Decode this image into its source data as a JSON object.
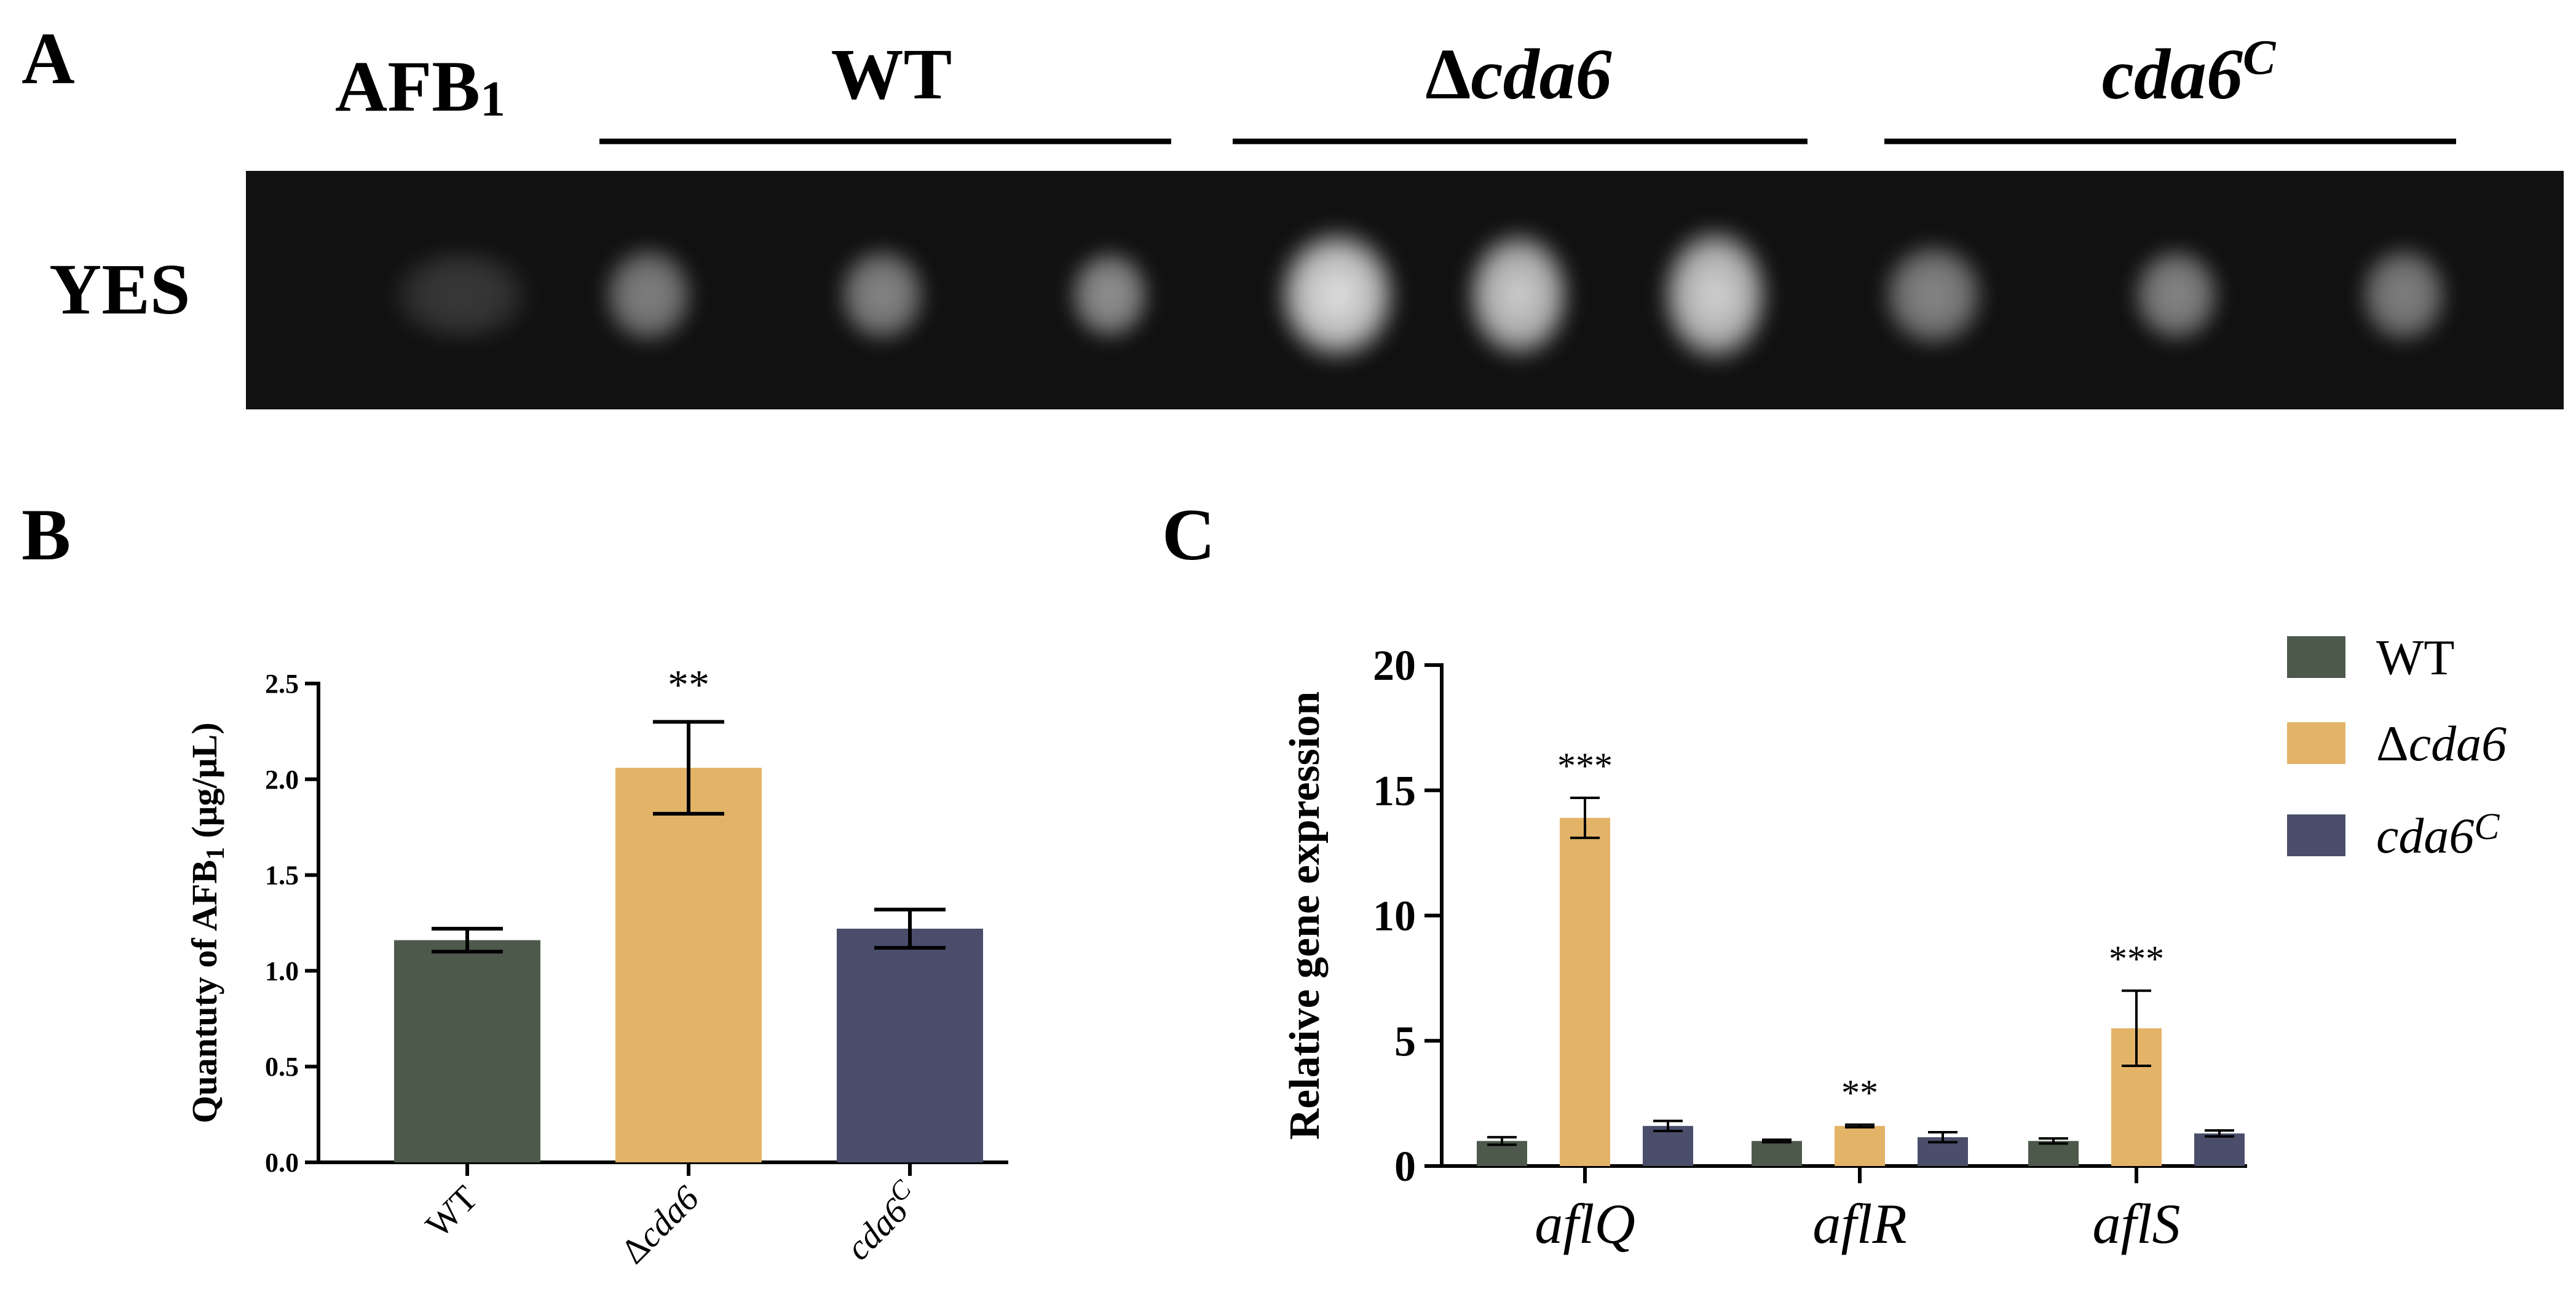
{
  "panel_a": {
    "letter": "A",
    "row_label": "YES",
    "lane_header": "AFB",
    "lane_header_sub": "1",
    "groups": [
      {
        "label": "WT",
        "italic": false,
        "sup": ""
      },
      {
        "label": "Δ",
        "label_italic": "cda6",
        "italic": true,
        "sup": ""
      },
      {
        "label": "",
        "label_italic": "cda6",
        "italic": true,
        "sup": "C"
      }
    ],
    "spot_intensities": [
      0.17,
      0.48,
      0.5,
      0.55,
      0.88,
      0.8,
      0.82,
      0.5,
      0.5,
      0.48
    ]
  },
  "panel_b": {
    "letter": "B"
  },
  "panel_c": {
    "letter": "C"
  },
  "colors": {
    "wt": "#4d5a4b",
    "delta": "#e3b468",
    "comp": "#4a4e6b",
    "gel_bg": "#111111"
  },
  "chart_data": [
    {
      "type": "bar",
      "ylabel": "Quantuty of AFB",
      "ylabel_sub": "1",
      "ylabel_unit": " (μg/μL)",
      "ylim": [
        0,
        2.5
      ],
      "yticks": [
        "0.0",
        "0.5",
        "1.0",
        "1.5",
        "2.0",
        "2.5"
      ],
      "categories": [
        {
          "pre": "WT",
          "ital": "",
          "sup": ""
        },
        {
          "pre": "Δ",
          "ital": "cda6",
          "sup": ""
        },
        {
          "pre": "",
          "ital": "cda6",
          "sup": "C"
        }
      ],
      "values": [
        1.16,
        2.06,
        1.22
      ],
      "errors": [
        0.06,
        0.24,
        0.1
      ],
      "significance": [
        "",
        "**",
        ""
      ]
    },
    {
      "type": "bar",
      "ylabel": "Relative gene expression",
      "ylim": [
        0,
        20
      ],
      "yticks": [
        "0",
        "5",
        "10",
        "15",
        "20"
      ],
      "categories": [
        "aflQ",
        "aflR",
        "aflS"
      ],
      "legend": [
        {
          "pre": "WT",
          "ital": "",
          "sup": ""
        },
        {
          "pre": "Δ",
          "ital": "cda6",
          "sup": ""
        },
        {
          "pre": "",
          "ital": "cda6",
          "sup": "C"
        }
      ],
      "series": [
        {
          "values": [
            1.0,
            1.0,
            1.0
          ],
          "errors": [
            0.15,
            0.05,
            0.1
          ]
        },
        {
          "values": [
            13.9,
            1.6,
            5.5
          ],
          "errors": [
            0.8,
            0.05,
            1.5
          ],
          "significance": [
            "***",
            "**",
            "***"
          ]
        },
        {
          "values": [
            1.6,
            1.15,
            1.3
          ],
          "errors": [
            0.2,
            0.2,
            0.12
          ]
        }
      ]
    }
  ]
}
